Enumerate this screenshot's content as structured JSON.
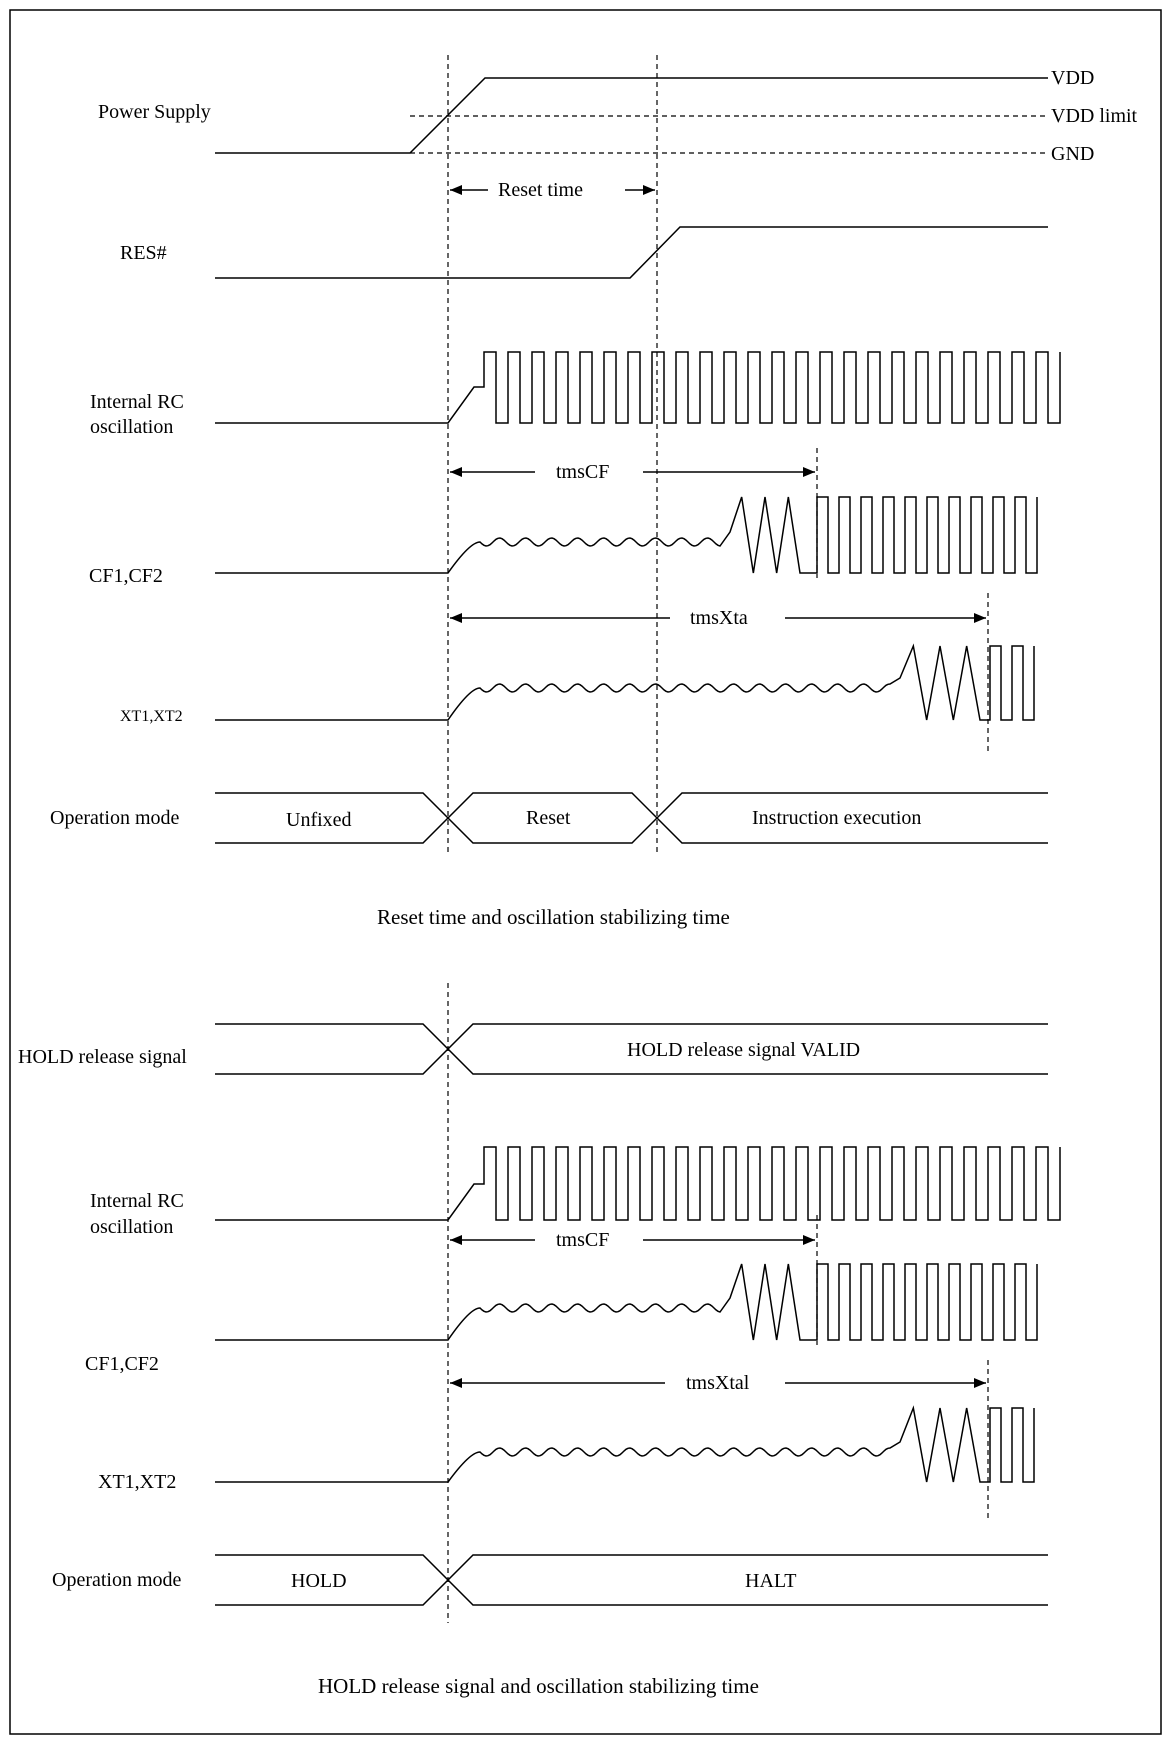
{
  "diagram1": {
    "caption": "Reset time and oscillation stabilizing time",
    "power_supply": {
      "label": "Power Supply",
      "vdd": "VDD",
      "vdd_limit": "VDD limit",
      "gnd": "GND"
    },
    "reset_time_label": "Reset time",
    "res_label": "RES#",
    "rc_label_line1": "Internal RC",
    "rc_label_line2": "oscillation",
    "tmscf_label": "tmsCF",
    "cf_label": "CF1,CF2",
    "tmsxta_label": "tmsXta",
    "xt_label": "XT1,XT2",
    "opmode": {
      "label": "Operation mode",
      "states": [
        "Unfixed",
        "Reset",
        "Instruction execution"
      ]
    }
  },
  "diagram2": {
    "caption": "HOLD release signal and oscillation stabilizing time",
    "hold_signal": {
      "label": "HOLD release signal",
      "valid_text": "HOLD release signal VALID"
    },
    "rc_label_line1": "Internal RC",
    "rc_label_line2": "oscillation",
    "tmscf_label": "tmsCF",
    "cf_label": "CF1,CF2",
    "tmsxtal_label": "tmsXtal",
    "xt_label": "XT1,XT2",
    "opmode": {
      "label": "Operation mode",
      "states": [
        "HOLD",
        "HALT"
      ]
    }
  }
}
